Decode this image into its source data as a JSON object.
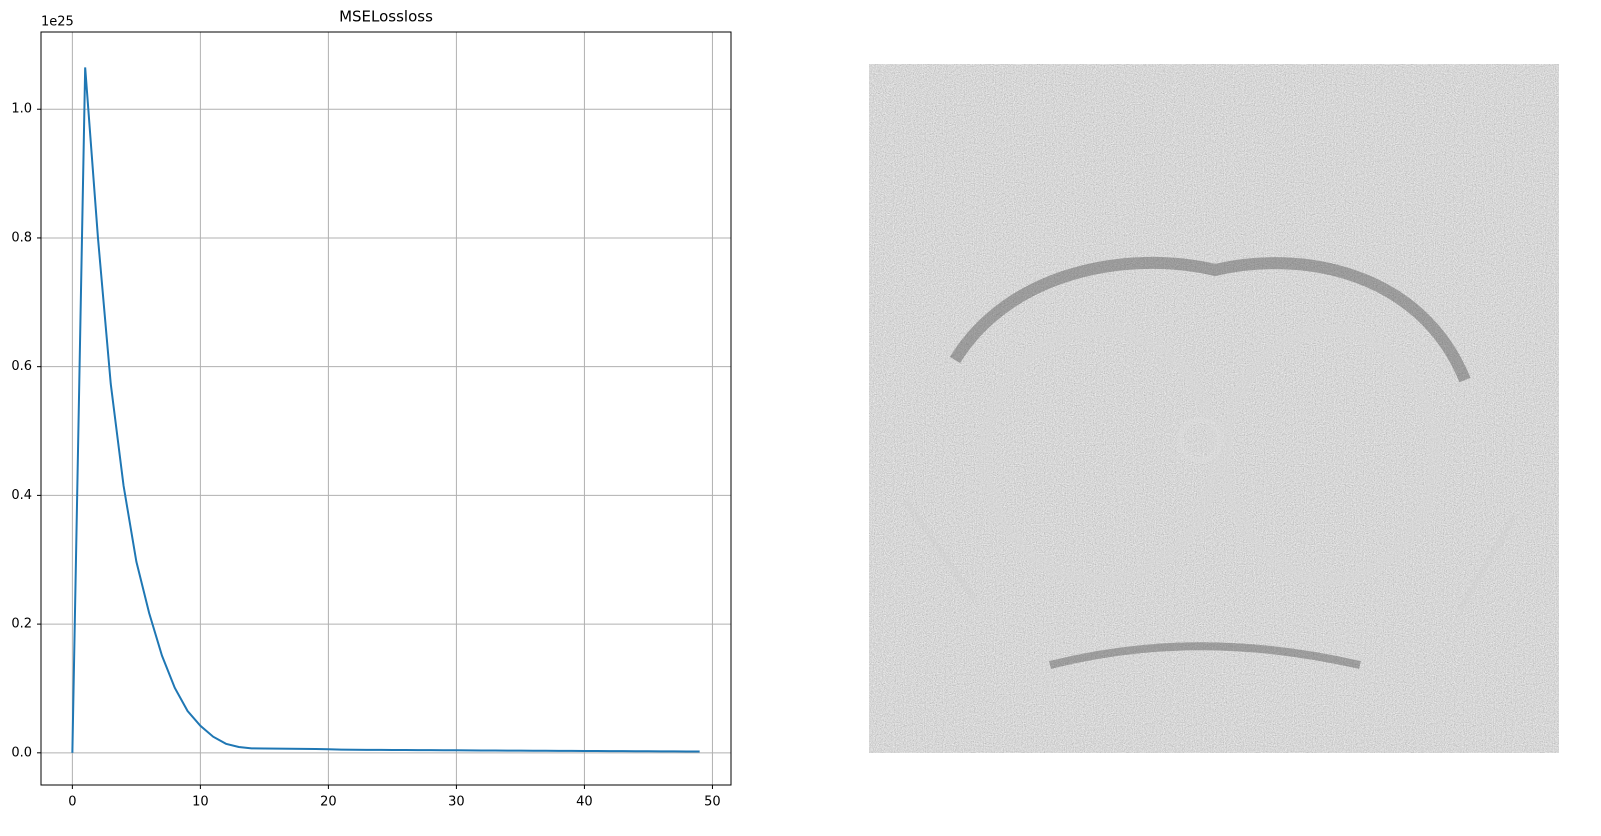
{
  "chart_data": {
    "type": "line",
    "title": "MSELossloss",
    "y_offset_label": "1e25",
    "x": [
      0,
      1,
      2,
      3,
      4,
      5,
      6,
      7,
      8,
      9,
      10,
      11,
      12,
      13,
      14,
      15,
      16,
      17,
      18,
      19,
      20,
      21,
      22,
      23,
      24,
      25,
      26,
      27,
      28,
      29,
      30,
      31,
      32,
      33,
      34,
      35,
      36,
      37,
      38,
      39,
      40,
      41,
      42,
      43,
      44,
      45,
      46,
      47,
      48,
      49
    ],
    "values": [
      0.0,
      1.065,
      0.8,
      0.573,
      0.415,
      0.297,
      0.217,
      0.151,
      0.101,
      0.065,
      0.042,
      0.025,
      0.014,
      0.009,
      0.007,
      0.0068,
      0.0066,
      0.0064,
      0.0062,
      0.006,
      0.0055,
      0.005,
      0.0048,
      0.0046,
      0.0045,
      0.0044,
      0.0043,
      0.0042,
      0.0041,
      0.004,
      0.0039,
      0.0038,
      0.0037,
      0.0036,
      0.0035,
      0.0034,
      0.0033,
      0.0032,
      0.0031,
      0.003,
      0.0029,
      0.0028,
      0.0027,
      0.0026,
      0.0025,
      0.0024,
      0.0023,
      0.0022,
      0.0021,
      0.002
    ],
    "color": "#1f77b4",
    "xlim": [
      -2.45,
      51.45
    ],
    "xticks": [
      0,
      10,
      20,
      30,
      40,
      50
    ],
    "ylim": [
      -0.05,
      1.12
    ],
    "yticks": [
      {
        "value": 0,
        "label": "0.0"
      },
      0.2,
      0.4,
      0.6,
      0.8,
      {
        "value": 1,
        "label": "1.0"
      }
    ],
    "grid": true
  }
}
